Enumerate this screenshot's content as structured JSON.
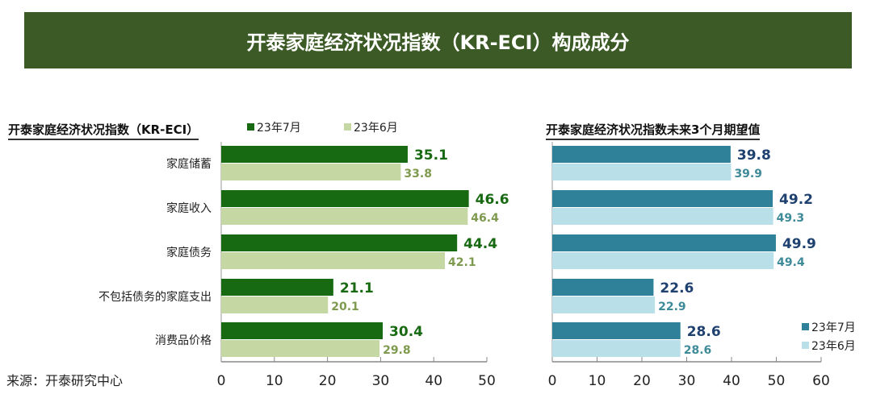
{
  "banner_title": "开泰家庭经济状况指数（KR-ECI）构成成分",
  "source": "来源：开泰研究中心",
  "colors": {
    "banner": "#3b5a25",
    "left_jul": "#186a12",
    "left_jun": "#c5d7a2",
    "left_jul_label": "#186a12",
    "left_jun_label": "#7e9a4e",
    "right_jul": "#2f8199",
    "right_jun": "#b9dfe8",
    "right_jul_label": "#1f4170",
    "right_jun_label": "#3f8a99"
  },
  "chart_data": [
    {
      "type": "bar",
      "orientation": "horizontal",
      "title": "开泰家庭经济状况指数（KR-ECI）",
      "categories": [
        "家庭储蓄",
        "家庭收入",
        "家庭债务",
        "不包括债务的家庭支出",
        "消费品价格"
      ],
      "series": [
        {
          "name": "23年7月",
          "values": [
            35.1,
            46.6,
            44.4,
            21.1,
            30.4
          ]
        },
        {
          "name": "23年6月",
          "values": [
            33.8,
            46.4,
            42.1,
            20.1,
            29.8
          ]
        }
      ],
      "xlim": [
        0,
        50
      ],
      "xticks": [
        "0",
        "10",
        "20",
        "30",
        "40",
        "50"
      ],
      "legend": "top",
      "grid": false
    },
    {
      "type": "bar",
      "orientation": "horizontal",
      "title": "开泰家庭经济状况指数未来3个月期望值",
      "categories": [
        "家庭储蓄",
        "家庭收入",
        "家庭债务",
        "不包括债务的家庭支出",
        "消费品价格"
      ],
      "series": [
        {
          "name": "23年7月",
          "values": [
            39.8,
            49.2,
            49.9,
            22.6,
            28.6
          ]
        },
        {
          "name": "23年6月",
          "values": [
            39.9,
            49.3,
            49.4,
            22.9,
            28.6
          ]
        }
      ],
      "xlim": [
        0,
        60
      ],
      "xticks": [
        "0",
        "10",
        "20",
        "30",
        "40",
        "50",
        "60"
      ],
      "legend": "bottom-right",
      "grid": false
    }
  ]
}
